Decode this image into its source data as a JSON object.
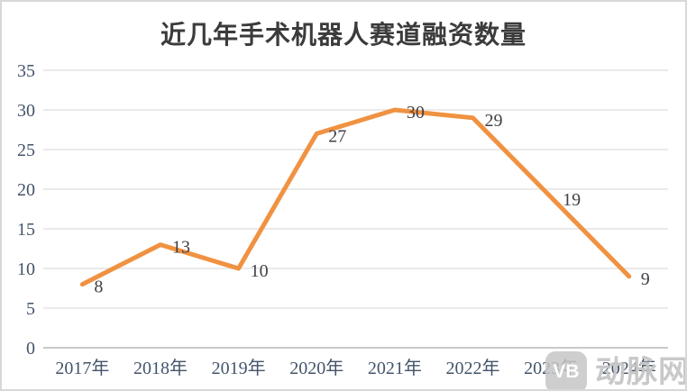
{
  "chart_data": {
    "type": "line",
    "title": "近几年手术机器人赛道融资数量",
    "categories": [
      "2017年",
      "2018年",
      "2019年",
      "2020年",
      "2021年",
      "2022年",
      "2023年",
      "2024年"
    ],
    "series": [
      {
        "name": "融资数量",
        "values": [
          8,
          13,
          10,
          27,
          30,
          29,
          19,
          9
        ]
      }
    ],
    "xlabel": "",
    "ylabel": "",
    "ylim": [
      0,
      35
    ],
    "y_ticks": [
      0,
      5,
      10,
      15,
      20,
      25,
      30,
      35
    ],
    "grid": true,
    "legend": "none",
    "data_labels_visible": true,
    "colors": {
      "line": "#F09241",
      "gridline": "#E4E4E4",
      "axis_line": "#C9C9C9",
      "tick_label": "#44546A",
      "data_label": "#404047",
      "title": "#3B3B3B"
    }
  },
  "watermark": {
    "logo_text": "VB",
    "brand": "动脉网"
  }
}
